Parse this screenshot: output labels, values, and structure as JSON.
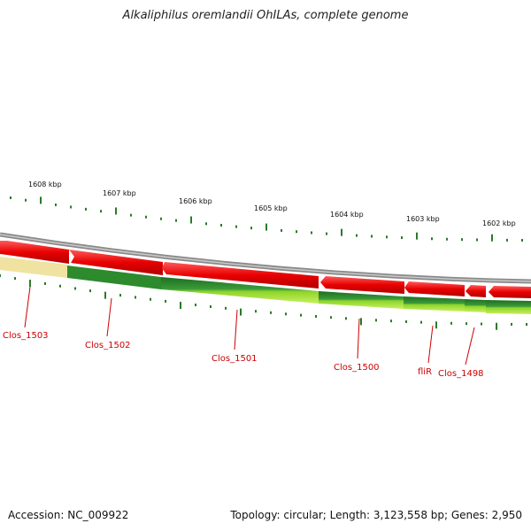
{
  "title": "Alkaliphilus oremlandii OhILAs, complete genome",
  "footer": {
    "accession": "Accession: NC_009922",
    "summary": "Topology: circular; Length: 3,123,558 bp; Genes: 2,950"
  },
  "ruler_labels": [
    "1608 kbp",
    "1607 kbp",
    "1606 kbp",
    "1605 kbp",
    "1604 kbp",
    "1603 kbp",
    "1602 kbp"
  ],
  "gene_labels": [
    "Clos_1503",
    "Clos_1502",
    "Clos_1501",
    "Clos_1500",
    "fliR",
    "Clos_1498"
  ],
  "colors": {
    "forward_gene": "#e80000",
    "reverse_gene_dark": "#2d8a2d",
    "reverse_gene_light": "#8fd42a",
    "backbone": "#888888",
    "pseudo_region": "#f0e2a0",
    "label": "#cc0000",
    "tick": "#2a7a2a"
  }
}
